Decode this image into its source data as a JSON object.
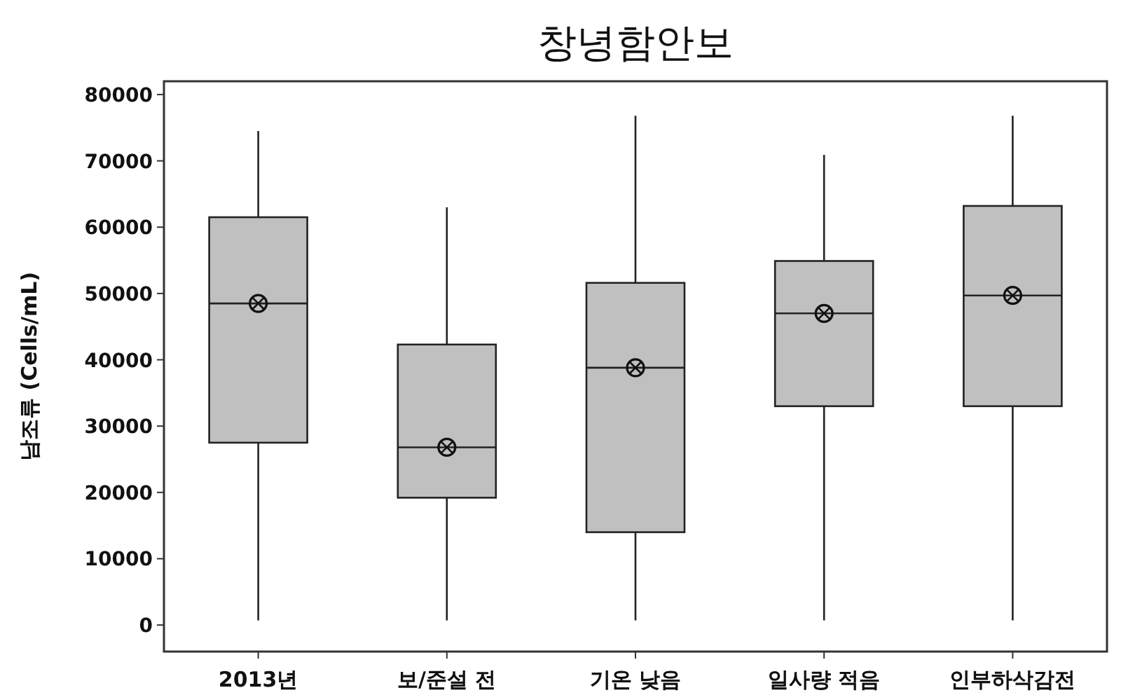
{
  "chart_data": {
    "type": "box",
    "title": "창녕함안보",
    "ylabel": "남조류 (Cells/mL)",
    "categories": [
      "2013년",
      "보/준설 전",
      "기온 낮음",
      "일사량 적음",
      "인부하삭감전"
    ],
    "boxes": [
      {
        "low": 700,
        "q1": 27500,
        "median": 48500,
        "q3": 61500,
        "high": 74500,
        "mean": 48500
      },
      {
        "low": 700,
        "q1": 19200,
        "median": 26800,
        "q3": 42300,
        "high": 63000,
        "mean": 26800
      },
      {
        "low": 700,
        "q1": 14000,
        "median": 38800,
        "q3": 51600,
        "high": 76800,
        "mean": 38800
      },
      {
        "low": 700,
        "q1": 33000,
        "median": 47000,
        "q3": 54900,
        "high": 70900,
        "mean": 47000
      },
      {
        "low": 700,
        "q1": 33000,
        "median": 49700,
        "q3": 63200,
        "high": 76800,
        "mean": 49700
      }
    ],
    "color": "#c0c0c0",
    "marker": "cross",
    "grid": false,
    "ylim": [
      -4000,
      82000
    ],
    "yticks": [
      0,
      10000,
      20000,
      30000,
      40000,
      50000,
      60000,
      70000,
      80000
    ]
  }
}
